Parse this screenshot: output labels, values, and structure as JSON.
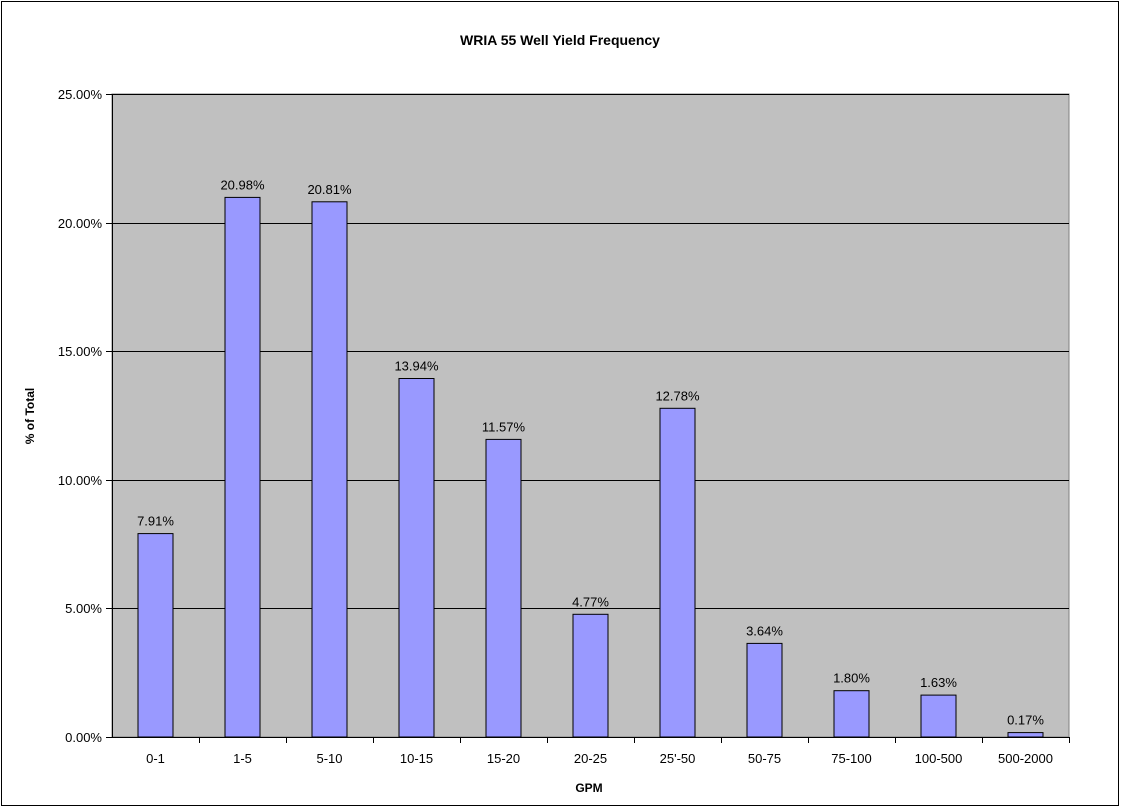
{
  "chart_data": {
    "type": "bar",
    "title": "WRIA 55 Well Yield Frequency",
    "xlabel": "GPM",
    "ylabel": "% of Total",
    "categories": [
      "0-1",
      "1-5",
      "5-10",
      "10-15",
      "15-20",
      "20-25",
      "25'-50",
      "50-75",
      "75-100",
      "100-500",
      "500-2000"
    ],
    "values": [
      7.91,
      20.98,
      20.81,
      13.94,
      11.57,
      4.77,
      12.78,
      3.64,
      1.8,
      1.63,
      0.17
    ],
    "data_labels": [
      "7.91%",
      "20.98%",
      "20.81%",
      "13.94%",
      "11.57%",
      "4.77%",
      "12.78%",
      "3.64%",
      "1.80%",
      "1.63%",
      "0.17%"
    ],
    "ylim": [
      0,
      25
    ],
    "yticks": [
      0,
      5,
      10,
      15,
      20,
      25
    ],
    "ytick_labels": [
      "0.00%",
      "5.00%",
      "10.00%",
      "15.00%",
      "20.00%",
      "25.00%"
    ],
    "grid": true,
    "legend": "none",
    "colors": {
      "plot_background": "#c0c0c0",
      "bar_fill": "#9999ff",
      "bar_stroke": "#000000",
      "gridline": "#000000"
    }
  }
}
